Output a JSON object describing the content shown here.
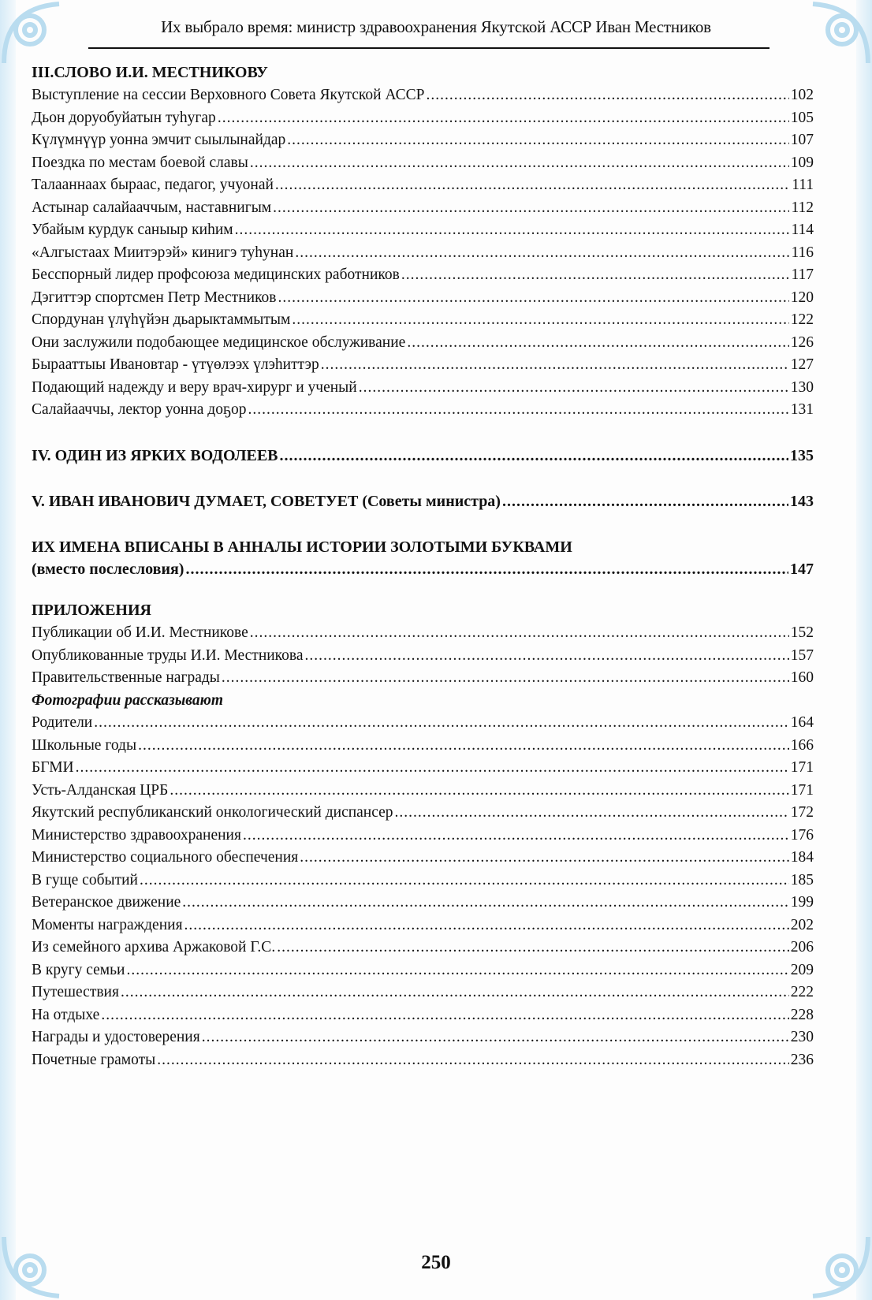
{
  "header": {
    "title": "Их выбрало время: министр здравоохранения Якутской АССР Иван Местников"
  },
  "section3": {
    "title": "III.СЛОВО И.И. МЕСТНИКОВУ",
    "items": [
      {
        "title": "Выступление на сессии Верховного Совета Якутской АССР",
        "page": "102"
      },
      {
        "title": "Дьон доруобуйатын туһугар",
        "page": "105"
      },
      {
        "title": "Күлүмнүүр уонна эмчит сыылынайдар",
        "page": "107"
      },
      {
        "title": "Поездка по местам боевой славы",
        "page": "109"
      },
      {
        "title": "Талааннаах бырaас, педагог, учуонай",
        "page": "111"
      },
      {
        "title": "Астынар салайааччым, наставнигым",
        "page": "112"
      },
      {
        "title": "Убайым курдук саныыр киһим",
        "page": "114"
      },
      {
        "title": "«Алгыстаах Миитэрэй» кинигэ туһунан",
        "page": "116"
      },
      {
        "title": "Бесспорный лидер профсоюза медицинских работников",
        "page": "117"
      },
      {
        "title": "Дэгиттэр спортсмен Петр Местников",
        "page": "120"
      },
      {
        "title": "Спордунан үлүһүйэн дьарыктаммытым",
        "page": "122"
      },
      {
        "title": "Они заслужили подобающее медицинское обслуживание",
        "page": "126"
      },
      {
        "title": "Бырааттыы Ивановтар -  үтүөлээх үлэһиттэр",
        "page": "127"
      },
      {
        "title": "Подающий надежду и веру врач-хирург и ученый",
        "page": "130"
      },
      {
        "title": "Салайааччы, лектор уонна доҕор",
        "page": "131"
      }
    ]
  },
  "section4": {
    "title": "IV. ОДИН ИЗ ЯРКИХ ВОДОЛЕЕВ",
    "page": "135"
  },
  "section5": {
    "title": "V. ИВАН ИВАНОВИЧ ДУМАЕТ, СОВЕТУЕТ (Советы министра)",
    "page": "143"
  },
  "afterword": {
    "line1": "ИХ ИМЕНА ВПИСАНЫ В АННАЛЫ ИСТОРИИ ЗОЛОТЫМИ БУКВАМИ",
    "line2": "(вместо послесловия)",
    "page": "147"
  },
  "appendix": {
    "title": "ПРИЛОЖЕНИЯ",
    "items": [
      {
        "title": "Публикации об И.И. Местникове",
        "page": "152"
      },
      {
        "title": "Опубликованные труды И.И. Местникова",
        "page": "157"
      },
      {
        "title": "Правительственные награды",
        "page": "160"
      }
    ],
    "photos_title": "Фотографии рассказывают",
    "photos": [
      {
        "title": "Родители",
        "page": "164"
      },
      {
        "title": "Школьные годы",
        "page": "166"
      },
      {
        "title": "БГМИ",
        "page": "171"
      },
      {
        "title": "Усть-Алданская ЦРБ",
        "page": "171"
      },
      {
        "title": "Якутский республиканский онкологический диспансер",
        "page": "172"
      },
      {
        "title": "Министерство здравоохранения",
        "page": "176"
      },
      {
        "title": "Министерство социального обеспечения",
        "page": "184"
      },
      {
        "title": "В гуще событий",
        "page": "185"
      },
      {
        "title": "Ветеранское движение",
        "page": "199"
      },
      {
        "title": "Моменты награждения",
        "page": "202"
      },
      {
        "title": "Из семейного архива Аржаковой Г.С.",
        "page": "206"
      },
      {
        "title": "В кругу семьи",
        "page": "209"
      },
      {
        "title": "Путешествия",
        "page": "222"
      },
      {
        "title": "На отдыхе",
        "page": "228"
      },
      {
        "title": "Награды и удостоверения",
        "page": "230"
      },
      {
        "title": "Почетные грамоты",
        "page": "236"
      }
    ]
  },
  "page_number": "250",
  "colors": {
    "ornament": "#b9dcef",
    "text": "#111111"
  }
}
